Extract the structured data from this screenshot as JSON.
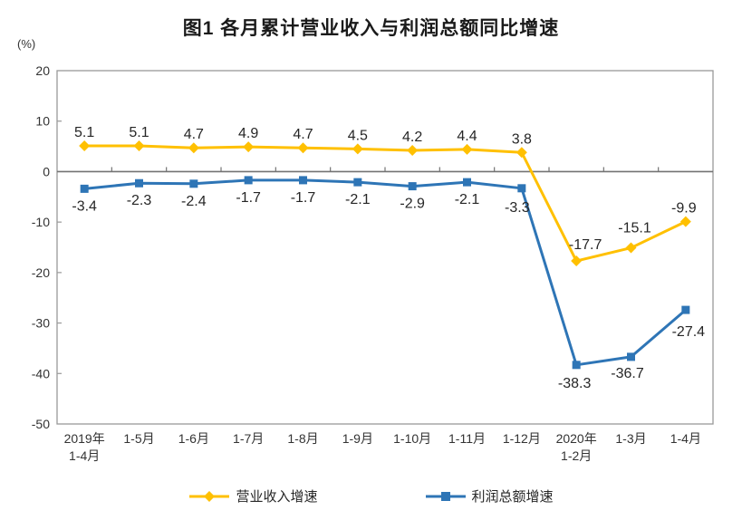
{
  "title": "图1  各月累计营业收入与利润总额同比增速",
  "unit_label": "(%)",
  "chart_data": {
    "type": "line",
    "title": "图1  各月累计营业收入与利润总额同比增速",
    "ylabel": "(%)",
    "xlabel": "",
    "grid": false,
    "legend_position": "bottom",
    "ylim": [
      -50,
      20
    ],
    "ytick_step": 10,
    "yticks": [
      20,
      10,
      0,
      -10,
      -20,
      -30,
      -40,
      -50
    ],
    "categories": [
      "2019年\n1-4月",
      "1-5月",
      "1-6月",
      "1-7月",
      "1-8月",
      "1-9月",
      "1-10月",
      "1-11月",
      "1-12月",
      "2020年\n1-2月",
      "1-3月",
      "1-4月"
    ],
    "series": [
      {
        "name": "营业收入增速",
        "marker": "diamond",
        "color": "#FFC000",
        "values": [
          5.1,
          5.1,
          4.7,
          4.9,
          4.7,
          4.5,
          4.2,
          4.4,
          3.8,
          -17.7,
          -15.1,
          -9.9
        ]
      },
      {
        "name": "利润总额增速",
        "marker": "square",
        "color": "#2E75B6",
        "values": [
          -3.4,
          -2.3,
          -2.4,
          -1.7,
          -1.7,
          -2.1,
          -2.9,
          -2.1,
          -3.3,
          -38.3,
          -36.7,
          -27.4
        ]
      }
    ],
    "colors": {
      "border": "#999999",
      "zero_line": "#737373",
      "data_label": "#262626",
      "tick_label": "#333333"
    }
  }
}
